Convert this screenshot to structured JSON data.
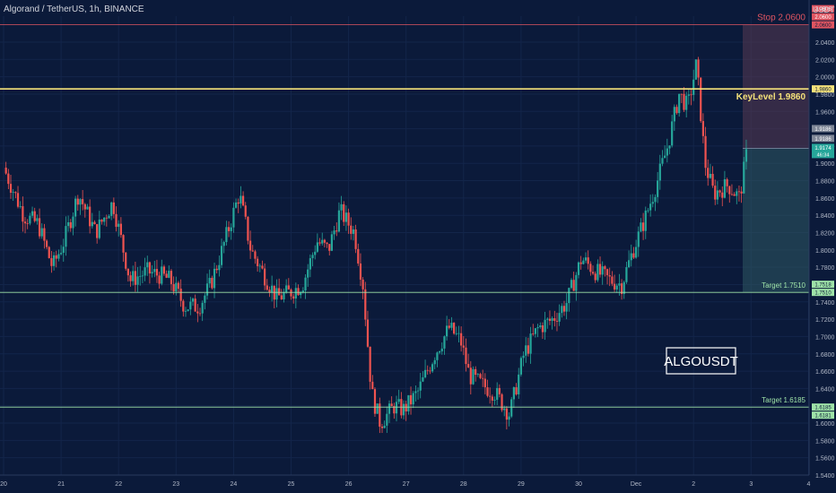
{
  "header": {
    "symbol": "Algorand / TetherUS, 1h, BINANCE",
    "currency": "USDT"
  },
  "chart_data": {
    "type": "candlestick",
    "ylim": [
      1.54,
      2.07
    ],
    "y_ticks": [
      2.04,
      2.02,
      2.0,
      1.98,
      1.96,
      1.94,
      1.92,
      1.9,
      1.88,
      1.86,
      1.84,
      1.82,
      1.8,
      1.78,
      1.76,
      1.74,
      1.72,
      1.7,
      1.68,
      1.66,
      1.64,
      1.62,
      1.6,
      1.58,
      1.56,
      1.54
    ],
    "y_tick_labels": [
      "2.0400",
      "2.0200",
      "2.0000",
      "1.9800",
      "1.9600",
      "1.9400",
      "1.9200",
      "1.9000",
      "1.8800",
      "1.8600",
      "1.8400",
      "1.8200",
      "1.8000",
      "1.7800",
      "1.7600",
      "1.7400",
      "1.7200",
      "1.7000",
      "1.6800",
      "1.6600",
      "1.6400",
      "1.6200",
      "1.6000",
      "1.5800",
      "1.5600",
      "1.5400"
    ],
    "x_labels": [
      "20",
      "21",
      "22",
      "23",
      "24",
      "25",
      "26",
      "27",
      "28",
      "29",
      "30",
      "Dec",
      "2",
      "3",
      "4"
    ],
    "x_label_positions": [
      0,
      1,
      2,
      3,
      4,
      5,
      6,
      7,
      8,
      9,
      10,
      11,
      12,
      13,
      14
    ],
    "series_path": [
      [
        0,
        1.895
      ],
      [
        0.35,
        1.84
      ],
      [
        0.6,
        1.83
      ],
      [
        0.85,
        1.78
      ],
      [
        1.05,
        1.81
      ],
      [
        1.3,
        1.865
      ],
      [
        1.6,
        1.82
      ],
      [
        1.9,
        1.855
      ],
      [
        2.05,
        1.81
      ],
      [
        2.2,
        1.765
      ],
      [
        2.5,
        1.775
      ],
      [
        2.75,
        1.77
      ],
      [
        2.9,
        1.765
      ],
      [
        3.15,
        1.735
      ],
      [
        3.4,
        1.735
      ],
      [
        3.6,
        1.76
      ],
      [
        3.8,
        1.8
      ],
      [
        4.1,
        1.865
      ],
      [
        4.3,
        1.8
      ],
      [
        4.5,
        1.775
      ],
      [
        4.75,
        1.745
      ],
      [
        4.95,
        1.75
      ],
      [
        5.2,
        1.76
      ],
      [
        5.45,
        1.81
      ],
      [
        5.65,
        1.8
      ],
      [
        5.85,
        1.845
      ],
      [
        6.1,
        1.82
      ],
      [
        6.25,
        1.76
      ],
      [
        6.4,
        1.635
      ],
      [
        6.55,
        1.6
      ],
      [
        6.8,
        1.62
      ],
      [
        6.95,
        1.615
      ],
      [
        7.2,
        1.635
      ],
      [
        7.5,
        1.68
      ],
      [
        7.75,
        1.71
      ],
      [
        7.95,
        1.695
      ],
      [
        8.1,
        1.655
      ],
      [
        8.3,
        1.645
      ],
      [
        8.55,
        1.635
      ],
      [
        8.8,
        1.61
      ],
      [
        9.05,
        1.68
      ],
      [
        9.3,
        1.71
      ],
      [
        9.55,
        1.72
      ],
      [
        9.8,
        1.74
      ],
      [
        10.05,
        1.79
      ],
      [
        10.3,
        1.775
      ],
      [
        10.55,
        1.765
      ],
      [
        10.75,
        1.76
      ],
      [
        10.95,
        1.8
      ],
      [
        11.15,
        1.835
      ],
      [
        11.35,
        1.875
      ],
      [
        11.55,
        1.92
      ],
      [
        11.75,
        1.98
      ],
      [
        11.9,
        1.965
      ],
      [
        12.05,
        2.015
      ],
      [
        12.2,
        1.9
      ],
      [
        12.35,
        1.865
      ],
      [
        12.6,
        1.875
      ],
      [
        12.8,
        1.86
      ],
      [
        12.92,
        1.91
      ]
    ],
    "levels": [
      {
        "name": "stop",
        "label": "Stop 2.0600",
        "value": 2.06,
        "price_label": "2.0600",
        "color": "#e05561"
      },
      {
        "name": "key",
        "label": "KeyLevel 1.9860",
        "value": 1.986,
        "price_label": "1.9860",
        "color": "#f5e27a"
      },
      {
        "name": "target1",
        "label": "Target 1.7510",
        "value": 1.751,
        "price_label": "1.7510",
        "color": "#9fe3a8"
      },
      {
        "name": "target2",
        "label": "Target 1.6185",
        "value": 1.6185,
        "price_label": "1.6185",
        "color": "#9fe3a8"
      }
    ],
    "current_price": {
      "value": 1.9174,
      "price_label": "1.9174",
      "countdown": "46:34",
      "color": "#26a69a"
    },
    "stop_price_stack": [
      "2.0606",
      "2.0600"
    ],
    "extra_price_labels": [
      "1.9186",
      "1.9186",
      "1.7518",
      "1.6181"
    ],
    "watermark": "ALGOUSDT",
    "colors": {
      "bg": "#0b1a3a",
      "up": "#26a69a",
      "down": "#ef5350",
      "text": "#c9d1e0"
    }
  }
}
